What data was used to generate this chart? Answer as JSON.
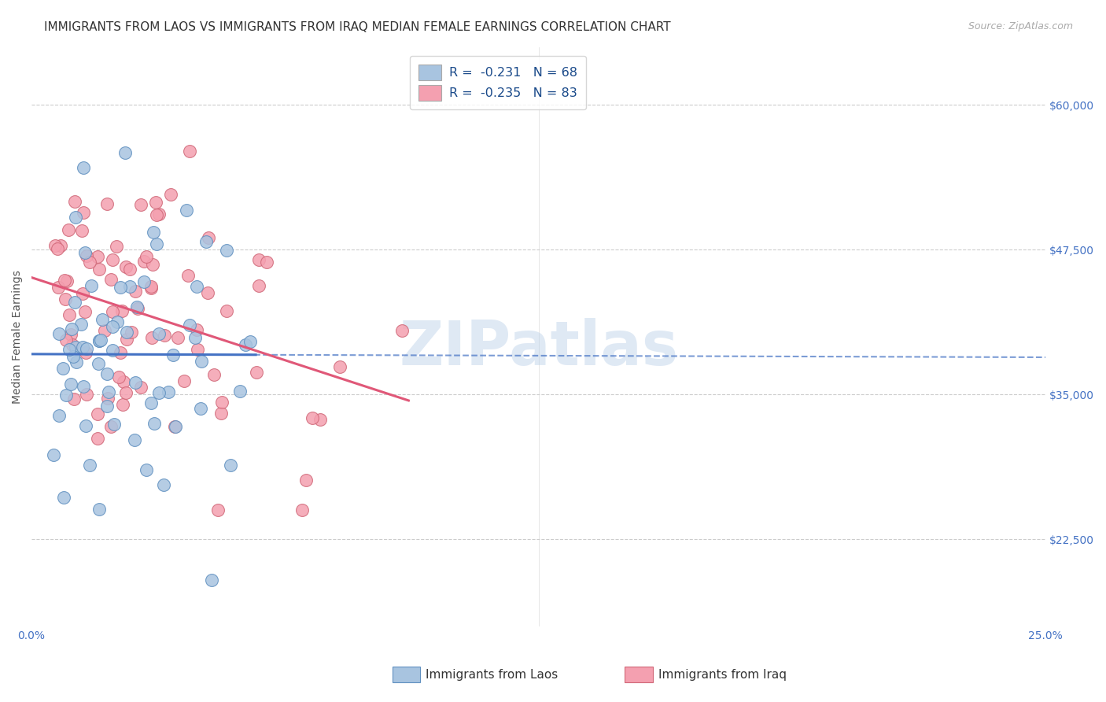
{
  "title": "IMMIGRANTS FROM LAOS VS IMMIGRANTS FROM IRAQ MEDIAN FEMALE EARNINGS CORRELATION CHART",
  "source": "Source: ZipAtlas.com",
  "ylabel": "Median Female Earnings",
  "ytick_labels": [
    "$22,500",
    "$35,000",
    "$47,500",
    "$60,000"
  ],
  "ytick_values": [
    22500,
    35000,
    47500,
    60000
  ],
  "ylim": [
    15000,
    65000
  ],
  "xlim": [
    0.0,
    0.25
  ],
  "legend_laos": "R =  -0.231   N = 68",
  "legend_iraq": "R =  -0.235   N = 83",
  "laos_color": "#a8c4e0",
  "iraq_color": "#f4a0b0",
  "laos_line_color": "#4472c4",
  "iraq_line_color": "#e05878",
  "watermark": "ZIPatlas",
  "title_fontsize": 11,
  "source_fontsize": 9,
  "axis_label_fontsize": 10,
  "tick_fontsize": 10,
  "background_color": "#ffffff",
  "grid_color": "#cccccc"
}
